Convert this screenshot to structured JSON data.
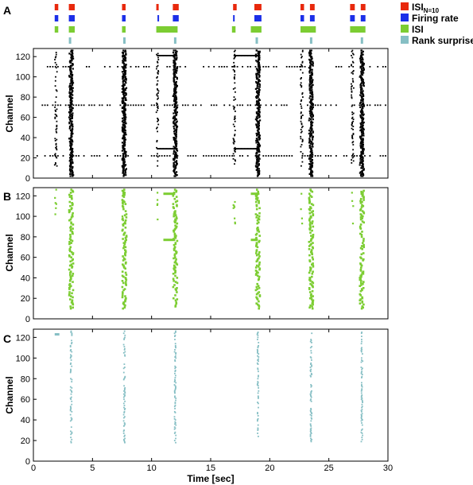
{
  "figure": {
    "x_axis_label": "Time [sec]",
    "y_axis_label": "Channel",
    "x_ticks": [
      "0",
      "5",
      "10",
      "15",
      "20",
      "25",
      "30"
    ],
    "y_ticks": [
      "0",
      "20",
      "40",
      "60",
      "80",
      "100",
      "120"
    ]
  },
  "legend": {
    "items": [
      {
        "label": "ISI",
        "sub": "N=10",
        "color": "#e8280c"
      },
      {
        "label": "Firing rate",
        "sub": "",
        "color": "#1b2fe8"
      },
      {
        "label": "ISI",
        "sub": "",
        "color": "#7ccd32"
      },
      {
        "label": "Rank surprise",
        "sub": "",
        "color": "#86bfc4"
      }
    ]
  },
  "chart_data": [
    {
      "panel": "A",
      "type": "scatter",
      "xlabel": "",
      "ylabel": "Channel",
      "xlim": [
        0,
        30
      ],
      "ylim": [
        0,
        128
      ],
      "color": "#000000",
      "note": "spike raster of all channels",
      "burst_times_sec": [
        3.2,
        7.7,
        12.0,
        19.0,
        23.5,
        27.8
      ],
      "tonic_channels": [
        110,
        72,
        22
      ]
    },
    {
      "panel": "B",
      "type": "scatter",
      "xlabel": "",
      "ylabel": "Channel",
      "xlim": [
        0,
        30
      ],
      "ylim": [
        0,
        128
      ],
      "color": "#7ccd32",
      "burst_times_sec": [
        3.2,
        7.7,
        12.0,
        19.0,
        23.5,
        27.8
      ]
    },
    {
      "panel": "C",
      "type": "scatter",
      "xlabel": "Time [sec]",
      "ylabel": "Channel",
      "xlim": [
        0,
        30
      ],
      "ylim": [
        0,
        128
      ],
      "color": "#86bfc4",
      "burst_times_sec": [
        3.2,
        7.7,
        12.0,
        19.0,
        23.5,
        27.8
      ]
    }
  ],
  "detection_bars": [
    {
      "method": "ISI_N=10",
      "color": "#e8280c",
      "intervals": [
        [
          1.8,
          2.1
        ],
        [
          3.0,
          3.5
        ],
        [
          7.5,
          7.8
        ],
        [
          10.4,
          10.6
        ],
        [
          11.8,
          12.3
        ],
        [
          16.9,
          17.2
        ],
        [
          18.7,
          19.3
        ],
        [
          22.6,
          22.9
        ],
        [
          23.4,
          23.8
        ],
        [
          26.8,
          27.2
        ],
        [
          27.7,
          28.1
        ]
      ]
    },
    {
      "method": "Firing rate",
      "color": "#1b2fe8",
      "intervals": [
        [
          1.8,
          2.1
        ],
        [
          3.0,
          3.5
        ],
        [
          7.5,
          7.8
        ],
        [
          10.5,
          10.6
        ],
        [
          11.8,
          12.3
        ],
        [
          16.9,
          17.0
        ],
        [
          18.7,
          19.3
        ],
        [
          22.6,
          22.9
        ],
        [
          23.4,
          23.8
        ],
        [
          26.8,
          27.2
        ],
        [
          27.7,
          28.1
        ]
      ]
    },
    {
      "method": "ISI",
      "color": "#7ccd32",
      "intervals": [
        [
          1.8,
          2.1
        ],
        [
          3.0,
          3.5
        ],
        [
          7.5,
          7.8
        ],
        [
          10.4,
          12.2
        ],
        [
          16.8,
          17.1
        ],
        [
          18.4,
          19.3
        ],
        [
          22.6,
          23.9
        ],
        [
          26.8,
          28.1
        ]
      ]
    },
    {
      "method": "Rank surprise",
      "color": "#86bfc4",
      "intervals": [
        [
          3.0,
          3.2
        ],
        [
          7.6,
          7.8
        ],
        [
          11.9,
          12.1
        ],
        [
          18.8,
          19.0
        ],
        [
          23.4,
          23.6
        ],
        [
          27.7,
          27.9
        ]
      ]
    }
  ],
  "panel_labels": [
    "A",
    "B",
    "C"
  ]
}
